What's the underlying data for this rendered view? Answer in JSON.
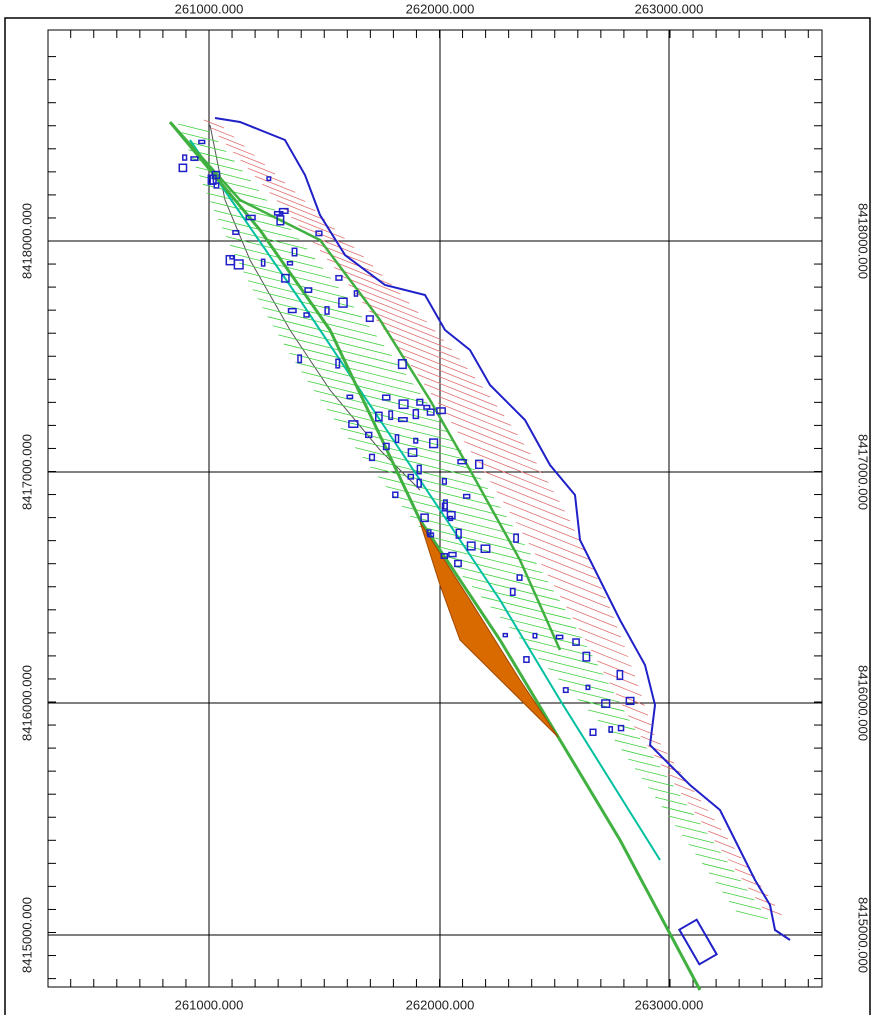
{
  "x_labels_top": [
    "261000.000",
    "262000.000",
    "263000.000"
  ],
  "x_labels_bottom": [
    "261000.000",
    "262000.000",
    "263000.000"
  ],
  "y_labels_left": [
    "8418000.000",
    "8417000.000",
    "8416000.000",
    "8415000.000"
  ],
  "y_labels_right": [
    "8418000.000",
    "8417000.000",
    "8416000.000",
    "8415000.000"
  ]
}
